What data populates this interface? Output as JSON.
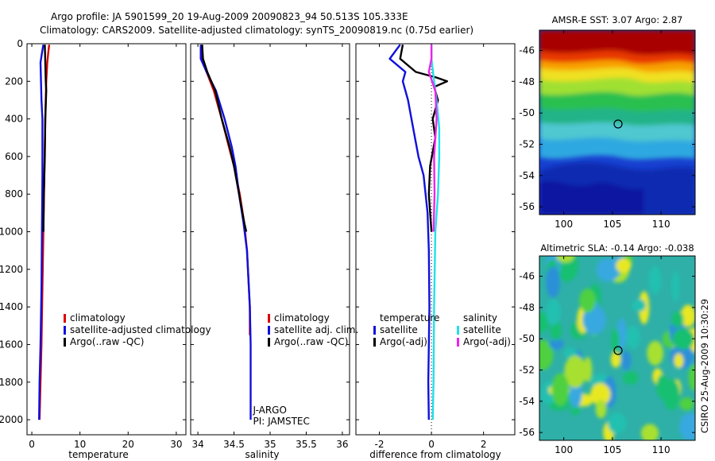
{
  "header": {
    "line1": "Argo profile: JA 5901599_20 19-Aug-2009 20090823_94 50.513S 105.333E",
    "line2": "Climatology: CARS2009. Satellite-adjusted climatology: synTS_20090819.nc (0.75d earlier)"
  },
  "credit": "CSIRO 25-Aug-2009 10:30:29",
  "colors": {
    "climatology": "#dd0000",
    "satellite": "#1010dd",
    "argo": "#000000",
    "sal_satellite": "#22e0e8",
    "sal_argo": "#ee22ee"
  },
  "chart_data": [
    {
      "id": "temperature",
      "type": "line",
      "xlabel": "temperature",
      "ylabel": "",
      "xlim": [
        -1,
        32
      ],
      "ylim": [
        2080,
        0
      ],
      "xticks": [
        0,
        10,
        20,
        30
      ],
      "yticks": [
        0,
        200,
        400,
        600,
        800,
        1000,
        1200,
        1400,
        1600,
        1800,
        2000
      ],
      "legend": [
        "climatology",
        "satellite-adjusted climatology",
        "Argo(..raw -QC)"
      ],
      "series": [
        {
          "name": "climatology",
          "color": "#dd0000",
          "points": [
            [
              3.6,
              5
            ],
            [
              3.4,
              50
            ],
            [
              3.2,
              100
            ],
            [
              3.0,
              200
            ],
            [
              2.8,
              400
            ],
            [
              2.6,
              700
            ],
            [
              2.4,
              1000
            ],
            [
              2.2,
              1300
            ],
            [
              2.0,
              1600
            ],
            [
              1.8,
              1800
            ],
            [
              1.6,
              2000
            ]
          ]
        },
        {
          "name": "satellite-adjusted climatology",
          "color": "#1010dd",
          "points": [
            [
              2.4,
              5
            ],
            [
              2.1,
              50
            ],
            [
              1.8,
              100
            ],
            [
              1.9,
              200
            ],
            [
              2.0,
              300
            ],
            [
              2.2,
              400
            ],
            [
              2.2,
              700
            ],
            [
              2.1,
              1000
            ],
            [
              2.0,
              1300
            ],
            [
              1.8,
              1600
            ],
            [
              1.6,
              1800
            ],
            [
              1.5,
              2000
            ]
          ]
        },
        {
          "name": "Argo(..raw -QC)",
          "color": "#000000",
          "points": [
            [
              2.7,
              5
            ],
            [
              2.8,
              100
            ],
            [
              2.9,
              200
            ],
            [
              3.0,
              250
            ],
            [
              2.8,
              400
            ],
            [
              2.7,
              600
            ],
            [
              2.5,
              800
            ],
            [
              2.4,
              1000
            ]
          ]
        }
      ]
    },
    {
      "id": "salinity",
      "type": "line",
      "xlabel": "salinity",
      "ylabel": "",
      "xlim": [
        33.9,
        36.1
      ],
      "ylim": [
        2080,
        0
      ],
      "xticks": [
        34,
        34.5,
        35,
        35.5,
        36
      ],
      "yticks": [
        0,
        200,
        400,
        600,
        800,
        1000,
        1200,
        1400,
        1600,
        1800,
        2000
      ],
      "legend": [
        "climatology",
        "satellite adj. clim.",
        "Argo(..raw -QC)"
      ],
      "annotations": [
        "J-ARGO",
        "PI: JAMSTEC"
      ],
      "series": [
        {
          "name": "climatology",
          "color": "#dd0000",
          "points": [
            [
              34.05,
              5
            ],
            [
              34.06,
              80
            ],
            [
              34.12,
              150
            ],
            [
              34.22,
              250
            ],
            [
              34.33,
              400
            ],
            [
              34.43,
              550
            ],
            [
              34.5,
              650
            ],
            [
              34.58,
              800
            ],
            [
              34.64,
              950
            ],
            [
              34.68,
              1100
            ],
            [
              34.7,
              1250
            ],
            [
              34.72,
              1400
            ],
            [
              34.72,
              1550
            ]
          ]
        },
        {
          "name": "satellite adj. clim.",
          "color": "#1010dd",
          "points": [
            [
              34.04,
              5
            ],
            [
              34.04,
              80
            ],
            [
              34.12,
              150
            ],
            [
              34.25,
              250
            ],
            [
              34.37,
              400
            ],
            [
              34.47,
              550
            ],
            [
              34.52,
              650
            ],
            [
              34.57,
              800
            ],
            [
              34.63,
              950
            ],
            [
              34.68,
              1100
            ],
            [
              34.7,
              1250
            ],
            [
              34.72,
              1400
            ],
            [
              34.73,
              1600
            ],
            [
              34.73,
              1800
            ],
            [
              34.73,
              2000
            ]
          ]
        },
        {
          "name": "Argo(..raw -QC)",
          "color": "#000000",
          "points": [
            [
              34.06,
              5
            ],
            [
              34.07,
              80
            ],
            [
              34.13,
              150
            ],
            [
              34.24,
              250
            ],
            [
              34.33,
              400
            ],
            [
              34.44,
              550
            ],
            [
              34.5,
              650
            ],
            [
              34.57,
              800
            ],
            [
              34.64,
              950
            ],
            [
              34.67,
              1000
            ]
          ]
        }
      ]
    },
    {
      "id": "difference",
      "type": "line",
      "xlabel": "difference from climatology",
      "ylabel": "",
      "xlim": [
        -2.9,
        3.2
      ],
      "ylim": [
        2080,
        0
      ],
      "xticks": [
        -2,
        0,
        2
      ],
      "yticks": [
        0,
        200,
        400,
        600,
        800,
        1000,
        1200,
        1400,
        1600,
        1800,
        2000
      ],
      "legend_temperature": [
        "temperature",
        "satellite",
        "Argo(-adj)"
      ],
      "legend_salinity": [
        "salinity",
        "satellite",
        "Argo(-adj)"
      ],
      "series": [
        {
          "name": "temperature satellite",
          "color": "#1010dd",
          "points": [
            [
              -1.2,
              5
            ],
            [
              -1.6,
              80
            ],
            [
              -1.0,
              150
            ],
            [
              -1.1,
              200
            ],
            [
              -0.9,
              300
            ],
            [
              -0.7,
              450
            ],
            [
              -0.5,
              600
            ],
            [
              -0.3,
              700
            ],
            [
              -0.15,
              900
            ],
            [
              -0.1,
              1100
            ],
            [
              -0.08,
              1400
            ],
            [
              -0.1,
              1600
            ],
            [
              -0.12,
              1800
            ],
            [
              -0.1,
              2000
            ]
          ]
        },
        {
          "name": "temperature Argo(-adj)",
          "color": "#000000",
          "points": [
            [
              -1.1,
              5
            ],
            [
              -1.2,
              80
            ],
            [
              -0.6,
              150
            ],
            [
              0.2,
              180
            ],
            [
              0.6,
              200
            ],
            [
              0.1,
              230
            ],
            [
              0.25,
              300
            ],
            [
              0.05,
              400
            ],
            [
              0.15,
              500
            ],
            [
              -0.05,
              650
            ],
            [
              -0.1,
              800
            ],
            [
              0.0,
              1000
            ]
          ]
        },
        {
          "name": "salinity satellite",
          "color": "#22e0e8",
          "points": [
            [
              0.0,
              5
            ],
            [
              0.0,
              80
            ],
            [
              0.1,
              200
            ],
            [
              0.2,
              300
            ],
            [
              0.3,
              450
            ],
            [
              0.3,
              600
            ],
            [
              0.25,
              800
            ],
            [
              0.15,
              1000
            ],
            [
              0.1,
              1400
            ],
            [
              0.08,
              1800
            ],
            [
              0.05,
              2000
            ]
          ]
        },
        {
          "name": "salinity Argo(-adj)",
          "color": "#ee22ee",
          "points": [
            [
              0.0,
              5
            ],
            [
              0.0,
              80
            ],
            [
              -0.1,
              150
            ],
            [
              0.15,
              250
            ],
            [
              0.2,
              400
            ],
            [
              0.1,
              600
            ],
            [
              0.12,
              800
            ],
            [
              0.08,
              1000
            ]
          ]
        }
      ]
    },
    {
      "id": "sst-map",
      "type": "heatmap",
      "title": "AMSR-E SST: 3.07  Argo: 2.87",
      "xlim": [
        97.5,
        113.5
      ],
      "ylim": [
        -56.5,
        -44.7
      ],
      "xticks": [
        100,
        105,
        110
      ],
      "yticks": [
        -46,
        -48,
        -50,
        -52,
        -54,
        -56
      ],
      "marker": [
        105.3,
        -50.5
      ]
    },
    {
      "id": "sla-map",
      "type": "heatmap",
      "title": "Altimetric SLA: -0.14  Argo: -0.038",
      "xlim": [
        97.5,
        113.5
      ],
      "ylim": [
        -56.5,
        -44.7
      ],
      "xticks": [
        100,
        105,
        110
      ],
      "yticks": [
        -46,
        -48,
        -50,
        -52,
        -54,
        -56
      ],
      "marker": [
        105.3,
        -50.5
      ]
    }
  ]
}
